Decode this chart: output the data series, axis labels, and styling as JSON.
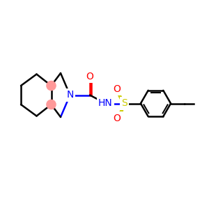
{
  "bg_color": "#ffffff",
  "atom_colors": {
    "C": "#000000",
    "N": "#0000ff",
    "O": "#ff0000",
    "S": "#cccc00",
    "H": "#000000"
  },
  "ring_highlight_color": "#ff9999",
  "bond_width": 1.8,
  "figsize": [
    3.0,
    3.0
  ],
  "dpi": 100
}
